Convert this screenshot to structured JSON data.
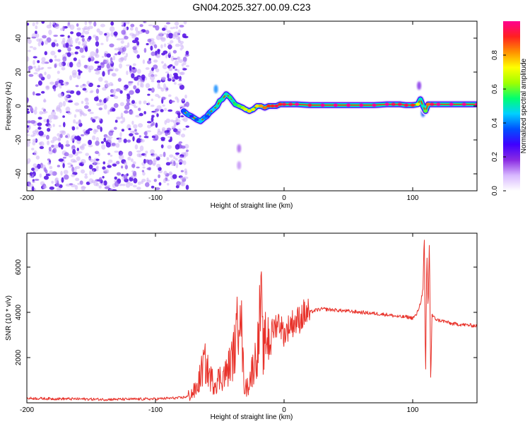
{
  "title": "GN04.2025.327.00.09.C23",
  "colors": {
    "snr_line": "#e8322a",
    "axis": "#000000",
    "background": "#ffffff",
    "scatter": "#5a18e6",
    "ridge_core": "#ff2020"
  },
  "chart_data": [
    {
      "type": "heatmap",
      "title": "GN04.2025.327.00.09.C23",
      "xlabel": "Height of straight line (km)",
      "ylabel": "Frequency (Hz)",
      "xlim": [
        -200,
        150
      ],
      "ylim": [
        -50,
        50
      ],
      "xticks": [
        -200,
        -100,
        0,
        100
      ],
      "yticks": [
        -40,
        -20,
        0,
        20,
        40
      ],
      "colorbar": {
        "label": "Normalized spectral amplitude",
        "range": [
          0,
          1
        ],
        "ticks": [
          0.0,
          0.2,
          0.4,
          0.6,
          0.8
        ],
        "colormap": [
          "#ffffff",
          "#d8b8ff",
          "#8a2be2",
          "#3f00ff",
          "#0050ff",
          "#00d0ff",
          "#00ff70",
          "#a0ff00",
          "#ffff00",
          "#ff9000",
          "#ff2020",
          "#ff0090"
        ]
      },
      "noise_region": {
        "x_range": [
          -200,
          -75
        ],
        "freq_range": [
          -50,
          50
        ],
        "typical_amplitude": 0.1
      },
      "ridge": {
        "x": [
          -78,
          -75,
          -72,
          -68,
          -65,
          -62,
          -60,
          -58,
          -55,
          -52,
          -50,
          -48,
          -45,
          -42,
          -40,
          -38,
          -35,
          -32,
          -30,
          -27,
          -24,
          -21,
          -18,
          -15,
          -12,
          -9,
          -6,
          -3,
          0,
          5,
          10,
          20,
          30,
          40,
          50,
          60,
          70,
          80,
          85,
          90,
          95,
          100,
          104,
          106,
          108,
          110,
          112,
          115,
          120,
          130,
          140,
          150
        ],
        "freq": [
          -3,
          -5,
          -6,
          -8,
          -9,
          -7,
          -6,
          -4,
          -2,
          0,
          3,
          4,
          7,
          5,
          3,
          1,
          0,
          -1,
          -2,
          -3,
          -2,
          0,
          0,
          -1,
          0,
          0,
          0,
          1,
          1,
          1,
          1,
          0.5,
          0.5,
          0.5,
          0.5,
          0.5,
          0.5,
          1,
          1,
          1,
          0.5,
          0.5,
          1,
          4,
          0,
          -3,
          1,
          1,
          1,
          1,
          1,
          1
        ],
        "amplitude": [
          0.35,
          0.4,
          0.3,
          0.35,
          0.45,
          0.4,
          0.35,
          0.4,
          0.45,
          0.5,
          0.55,
          0.5,
          0.5,
          0.55,
          0.5,
          0.55,
          0.6,
          0.65,
          0.7,
          0.75,
          0.7,
          0.75,
          0.8,
          0.85,
          0.9,
          0.9,
          0.95,
          0.9,
          0.95,
          0.95,
          1.0,
          0.95,
          1.0,
          1.0,
          1.0,
          1.0,
          1.0,
          1.0,
          0.95,
          0.95,
          0.95,
          0.9,
          0.7,
          0.5,
          0.5,
          0.6,
          0.85,
          0.95,
          1.0,
          1.0,
          1.0,
          1.0
        ]
      },
      "secondary_blobs": [
        {
          "x": -53,
          "freq": 10,
          "amplitude": 0.4
        },
        {
          "x": -35,
          "freq": -25,
          "amplitude": 0.15
        },
        {
          "x": -35,
          "freq": -35,
          "amplitude": 0.12
        },
        {
          "x": 105,
          "freq": 12,
          "amplitude": 0.2
        },
        {
          "x": 108,
          "freq": -4,
          "amplitude": 0.35
        }
      ]
    },
    {
      "type": "line",
      "xlabel": "Height of straight line (km)",
      "ylabel": "SNR (10 * v/v)",
      "xlim": [
        -200,
        150
      ],
      "ylim": [
        0,
        7500
      ],
      "xticks": [
        -200,
        -100,
        0,
        100
      ],
      "yticks": [
        2000,
        4000,
        6000
      ],
      "series": [
        {
          "name": "SNR",
          "x": [
            -200,
            -180,
            -160,
            -140,
            -120,
            -100,
            -90,
            -80,
            -75,
            -72,
            -68,
            -65,
            -62,
            -60,
            -58,
            -55,
            -52,
            -50,
            -45,
            -40,
            -37,
            -35,
            -34,
            -33,
            -32,
            -31,
            -30,
            -28,
            -25,
            -22,
            -20,
            -18,
            -17,
            -16,
            -15,
            -14,
            -12,
            -10,
            -8,
            -5,
            -3,
            0,
            5,
            10,
            15,
            20,
            25,
            30,
            40,
            50,
            60,
            70,
            80,
            90,
            95,
            100,
            103,
            106,
            108,
            109,
            110,
            111,
            112,
            113,
            114,
            115,
            116,
            118,
            120,
            125,
            130,
            140,
            150
          ],
          "y": [
            200,
            180,
            170,
            150,
            160,
            170,
            200,
            220,
            280,
            400,
            600,
            1200,
            1800,
            1500,
            1200,
            900,
            1000,
            1100,
            1300,
            2000,
            2800,
            4500,
            5900,
            3000,
            1800,
            900,
            600,
            800,
            1400,
            2000,
            2600,
            4600,
            3000,
            2200,
            2500,
            3000,
            2900,
            3100,
            3300,
            3600,
            3500,
            3000,
            3500,
            3600,
            3900,
            4000,
            4100,
            4150,
            4100,
            4050,
            4000,
            3950,
            3900,
            3800,
            3800,
            3750,
            3900,
            4400,
            5000,
            7500,
            900,
            6800,
            4000,
            7300,
            800,
            3900,
            3800,
            3700,
            3650,
            3600,
            3500,
            3450,
            3400
          ]
        }
      ]
    }
  ]
}
